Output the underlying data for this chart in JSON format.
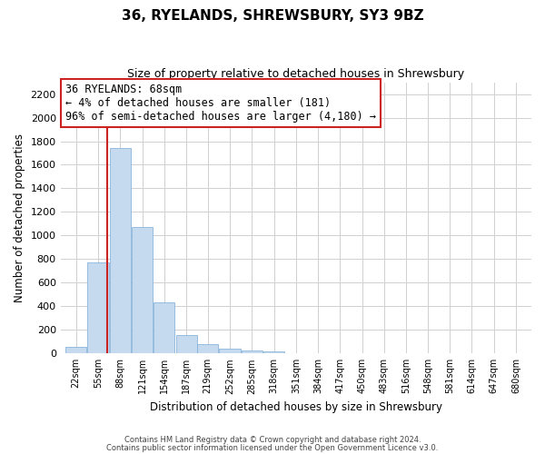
{
  "title": "36, RYELANDS, SHREWSBURY, SY3 9BZ",
  "subtitle": "Size of property relative to detached houses in Shrewsbury",
  "xlabel": "Distribution of detached houses by size in Shrewsbury",
  "ylabel": "Number of detached properties",
  "bar_labels": [
    "22sqm",
    "55sqm",
    "88sqm",
    "121sqm",
    "154sqm",
    "187sqm",
    "219sqm",
    "252sqm",
    "285sqm",
    "318sqm",
    "351sqm",
    "384sqm",
    "417sqm",
    "450sqm",
    "483sqm",
    "516sqm",
    "548sqm",
    "581sqm",
    "614sqm",
    "647sqm",
    "680sqm"
  ],
  "bar_values": [
    55,
    775,
    1740,
    1070,
    430,
    155,
    80,
    40,
    25,
    15,
    0,
    0,
    0,
    0,
    0,
    0,
    0,
    0,
    0,
    0,
    0
  ],
  "bar_color": "#c5d9ef",
  "bar_edge_color": "#7aaad4",
  "property_line_color": "#cc2222",
  "annotation_title": "36 RYELANDS: 68sqm",
  "annotation_line1": "← 4% of detached houses are smaller (181)",
  "annotation_line2": "96% of semi-detached houses are larger (4,180) →",
  "annotation_box_facecolor": "#ffffff",
  "annotation_box_edgecolor": "#cc2222",
  "grid_color": "#d0d0d0",
  "ylim": [
    0,
    2300
  ],
  "yticks": [
    0,
    200,
    400,
    600,
    800,
    1000,
    1200,
    1400,
    1600,
    1800,
    2000,
    2200
  ],
  "footer1": "Contains HM Land Registry data © Crown copyright and database right 2024.",
  "footer2": "Contains public sector information licensed under the Open Government Licence v3.0.",
  "bin_width": 33,
  "property_sqm": 68
}
